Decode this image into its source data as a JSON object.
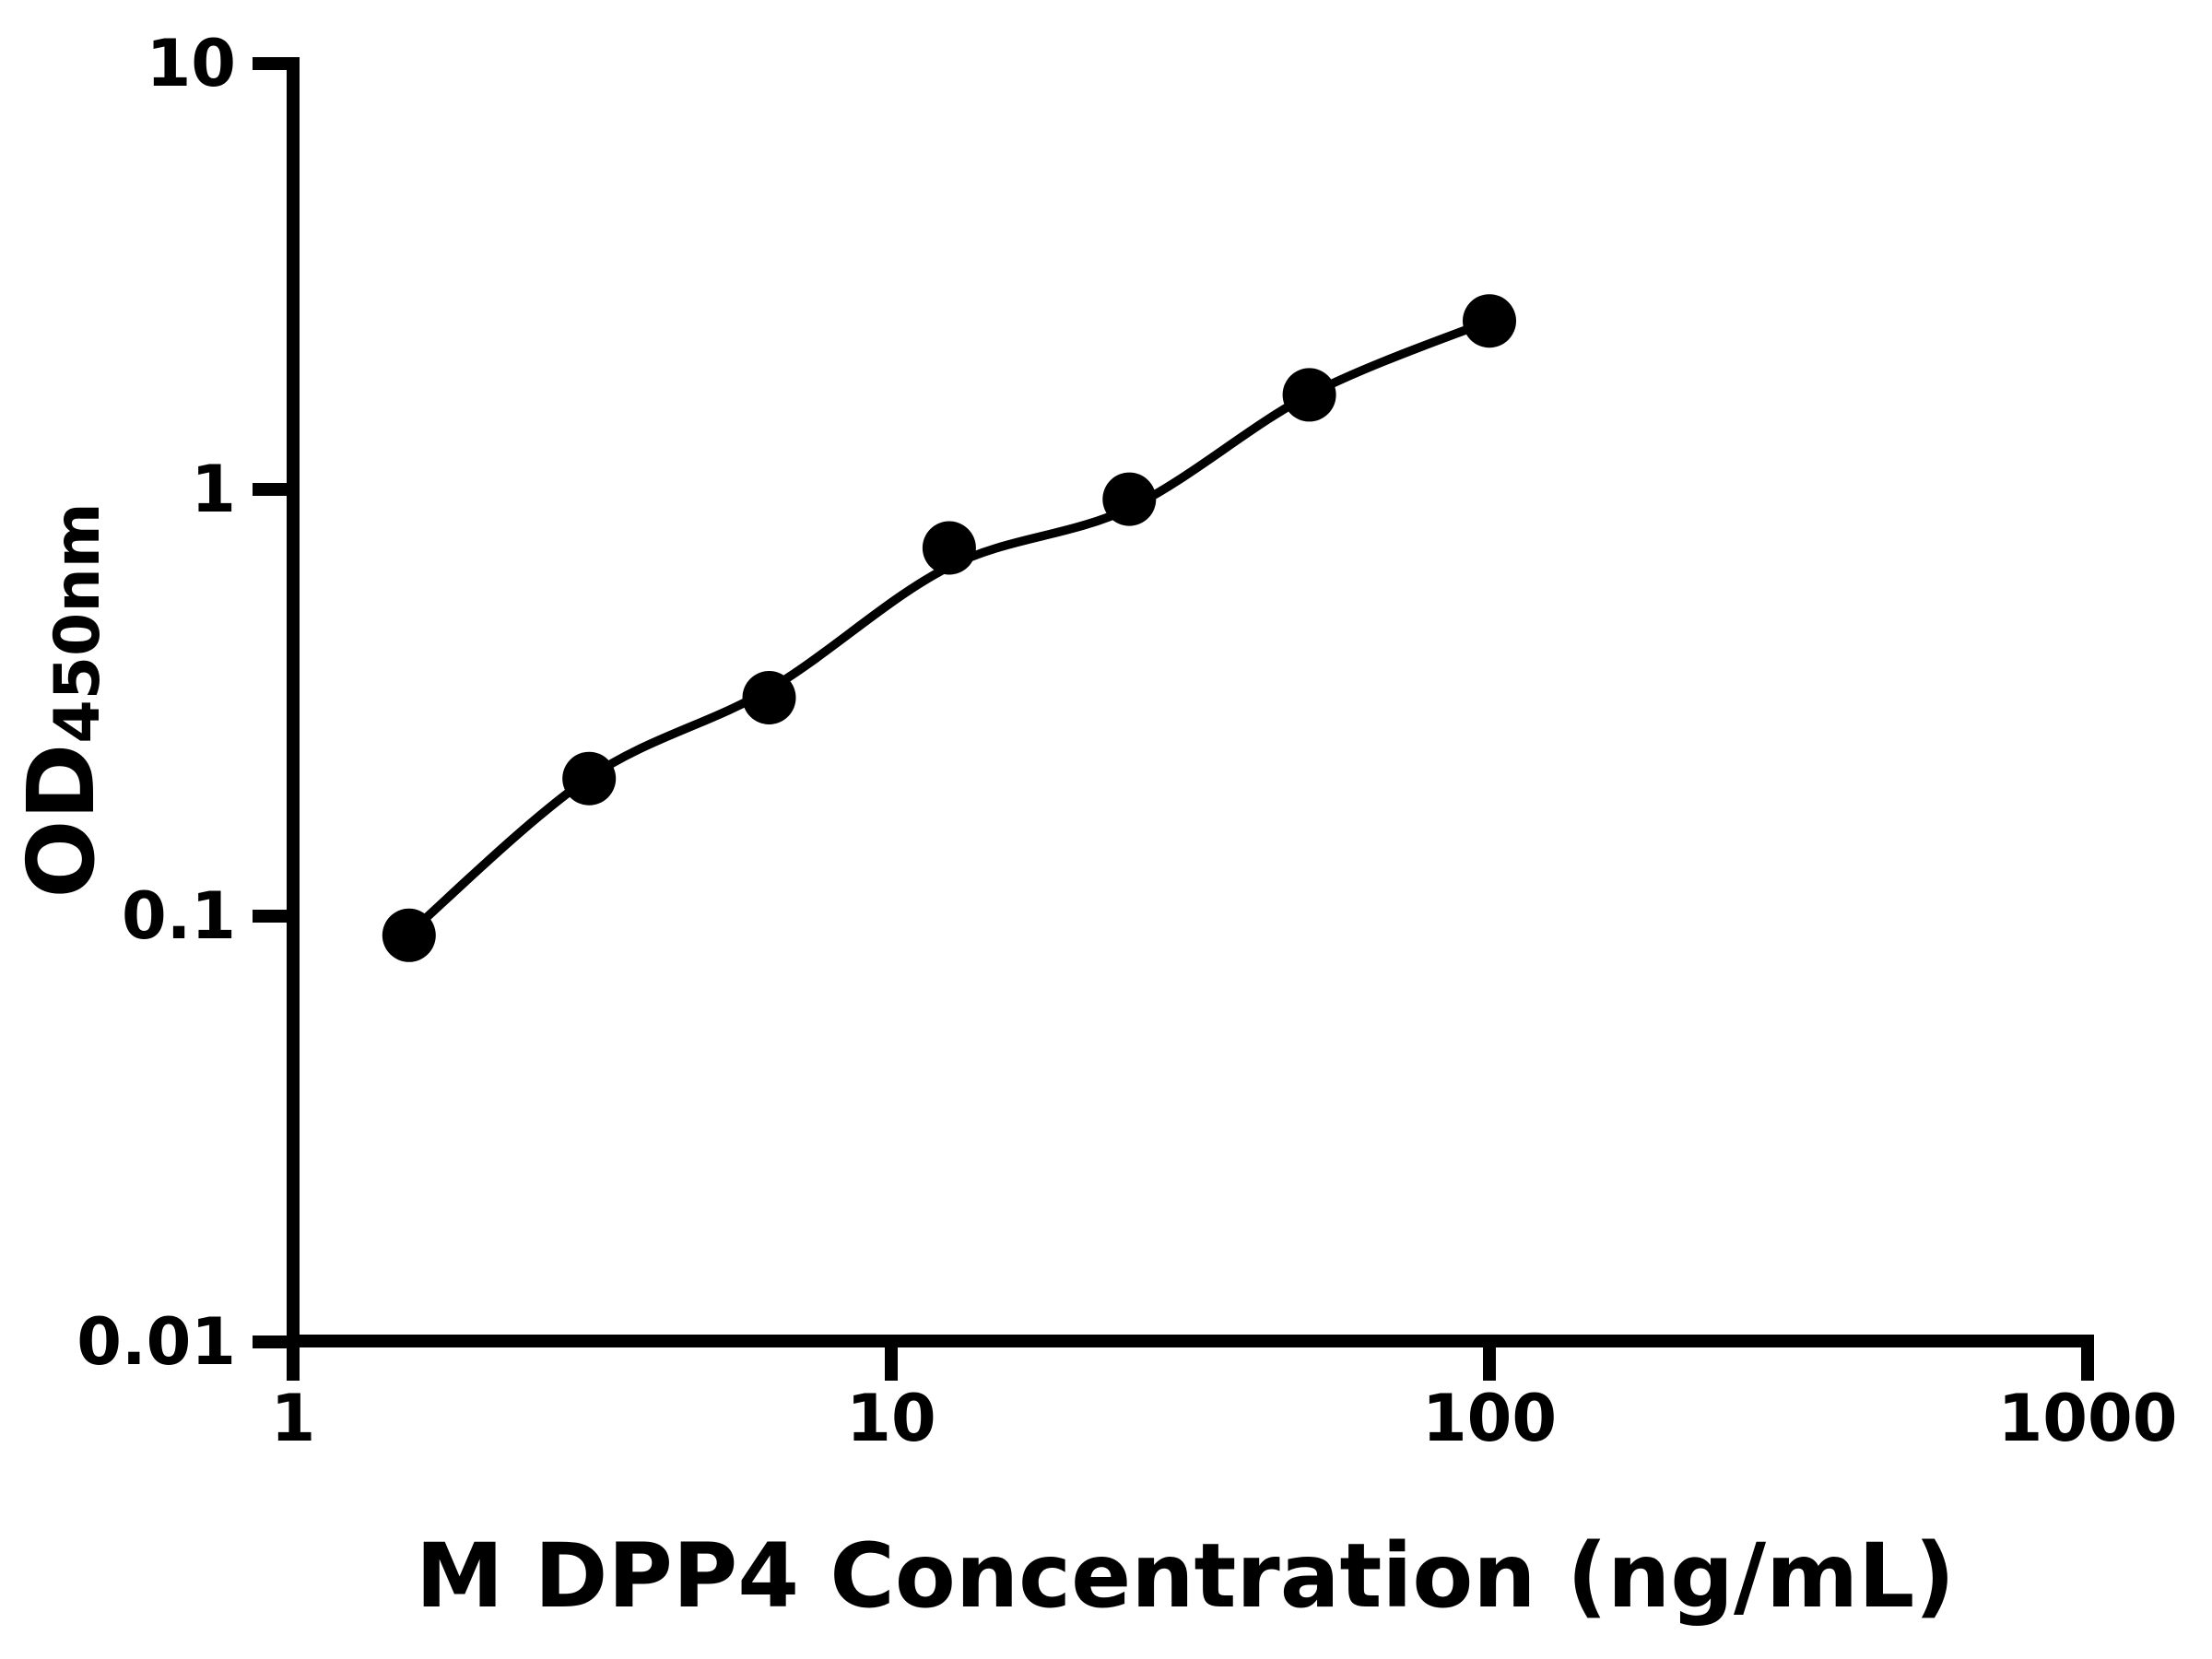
{
  "figure": {
    "background_color": "#ffffff",
    "ink_color": "#000000"
  },
  "chart_data": {
    "type": "scatter",
    "title": "",
    "xlabel": "M DPP4 Concentration (ng/mL)",
    "ylabel_main": "OD",
    "ylabel_sub": "450nm",
    "x_scale": "log",
    "y_scale": "log",
    "xlim": [
      1,
      1000
    ],
    "ylim": [
      0.01,
      10
    ],
    "x_ticks": [
      "1",
      "10",
      "100",
      "1000"
    ],
    "y_ticks": [
      "10",
      "1",
      "0.1",
      "0.01"
    ],
    "grid": false,
    "legend": null,
    "series": [
      {
        "marker": "circle",
        "color": "#000000",
        "x": [
          1.5625,
          3.125,
          6.25,
          12.5,
          25,
          50,
          100
        ],
        "y": [
          0.09,
          0.21,
          0.325,
          0.73,
          0.95,
          1.67,
          2.49
        ]
      }
    ],
    "fit_curve": {
      "color": "#000000",
      "x": [
        1.5625,
        3.125,
        6.25,
        12.5,
        25,
        50,
        100
      ],
      "y": [
        0.091,
        0.211,
        0.34,
        0.66,
        0.905,
        1.67,
        2.49
      ]
    }
  }
}
